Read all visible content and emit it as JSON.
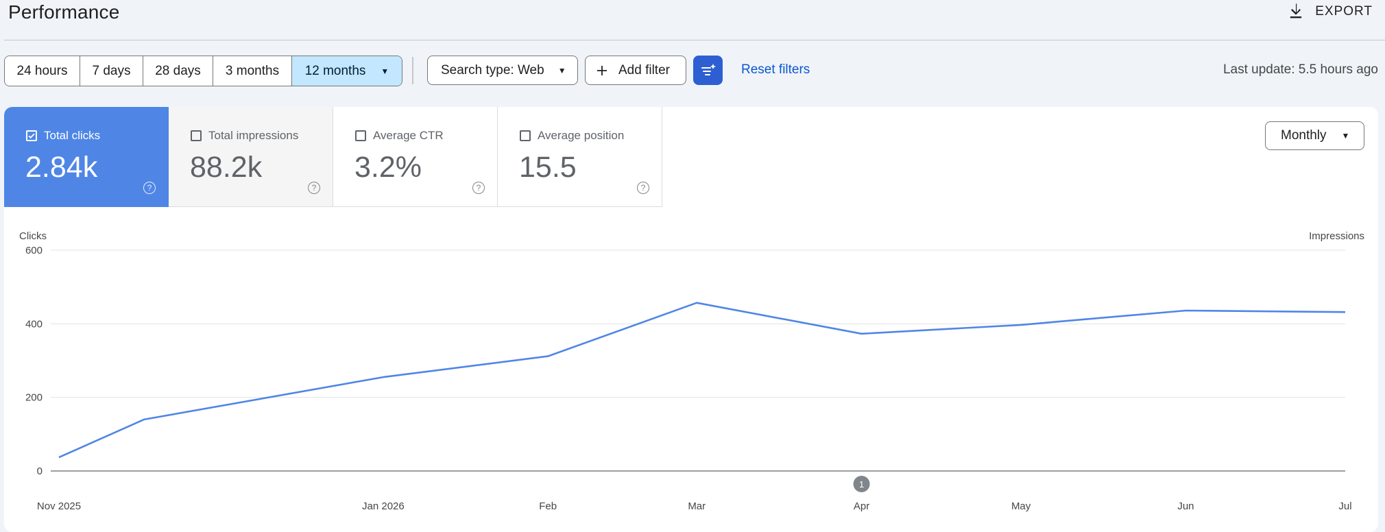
{
  "header": {
    "title": "Performance",
    "export_label": "EXPORT",
    "export_icon": "download-icon"
  },
  "toolbar": {
    "date_ranges": [
      {
        "label": "24 hours",
        "active": false
      },
      {
        "label": "7 days",
        "active": false
      },
      {
        "label": "28 days",
        "active": false
      },
      {
        "label": "3 months",
        "active": false
      },
      {
        "label": "12 months",
        "active": true
      }
    ],
    "search_type_label": "Search type: Web",
    "add_filter_label": "Add filter",
    "reset_filters_label": "Reset filters",
    "last_update": "Last update: 5.5 hours ago",
    "accent_color": "#2d5fd3",
    "active_chip_color": "#c2e7ff"
  },
  "metrics": [
    {
      "label": "Total clicks",
      "value": "2.84k",
      "checked": true,
      "help": "?"
    },
    {
      "label": "Total impressions",
      "value": "88.2k",
      "checked": false,
      "help": "?"
    },
    {
      "label": "Average CTR",
      "value": "3.2%",
      "checked": false,
      "help": "?"
    },
    {
      "label": "Average position",
      "value": "15.5",
      "checked": false,
      "help": "?"
    }
  ],
  "granularity": {
    "label": "Monthly"
  },
  "chart_data": {
    "type": "line",
    "ylabel": "Clicks",
    "y2label": "Impressions",
    "ylim": [
      0,
      600
    ],
    "yticks": [
      0,
      200,
      400,
      600
    ],
    "x_tick_labels": [
      "Nov 2025",
      "Jan 2026",
      "Feb",
      "Mar",
      "Apr",
      "May",
      "Jun",
      "Jul"
    ],
    "annotation": {
      "label": "1",
      "at": "Apr"
    },
    "series": [
      {
        "color": "#4f86e6",
        "points": [
          {
            "x": "2025-11-01",
            "y": 37
          },
          {
            "x": "2025-11-17",
            "y": 140
          },
          {
            "x": "2026-01-01",
            "y": 255
          },
          {
            "x": "2026-02-01",
            "y": 312
          },
          {
            "x": "2026-03-01",
            "y": 457
          },
          {
            "x": "2026-04-01",
            "y": 373
          },
          {
            "x": "2026-05-01",
            "y": 397
          },
          {
            "x": "2026-06-01",
            "y": 436
          },
          {
            "x": "2026-07-01",
            "y": 432
          }
        ]
      }
    ],
    "grid": true
  }
}
